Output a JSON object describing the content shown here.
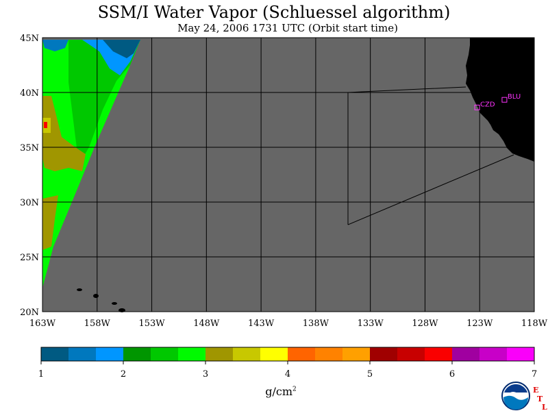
{
  "title": "SSM/I Water Vapor (Schluessel algorithm)",
  "subtitle": "May 24, 2006  1731 UTC  (Orbit start time)",
  "map": {
    "lat_labels": [
      "45N",
      "40N",
      "35N",
      "30N",
      "25N",
      "20N"
    ],
    "lon_labels": [
      "163W",
      "158W",
      "153W",
      "148W",
      "143W",
      "138W",
      "133W",
      "128W",
      "123W",
      "118W"
    ],
    "lat_range": [
      20,
      45
    ],
    "lon_range": [
      -163,
      -118
    ],
    "ocean_color": "#666666",
    "land_color": "#000000",
    "stations": [
      {
        "label": "CZD",
        "lat": 38.6,
        "lon": -123.2
      },
      {
        "label": "BLU",
        "lat": 39.3,
        "lon": -120.7
      }
    ],
    "station_color": "#ff33ff"
  },
  "colorbar": {
    "tick_labels": [
      "1",
      "2",
      "3",
      "4",
      "5",
      "6",
      "7"
    ],
    "colors": [
      "#005a82",
      "#0078be",
      "#0096ff",
      "#009600",
      "#00c800",
      "#00fa00",
      "#a09600",
      "#c8c800",
      "#ffff00",
      "#ff6400",
      "#ff8200",
      "#ffa000",
      "#a00000",
      "#c80000",
      "#fa0000",
      "#a000a0",
      "#c800c8",
      "#fa00fa"
    ],
    "units": "g/cm",
    "units_sup": "2"
  },
  "logo": {
    "letters": [
      "E",
      "T",
      "L"
    ]
  }
}
